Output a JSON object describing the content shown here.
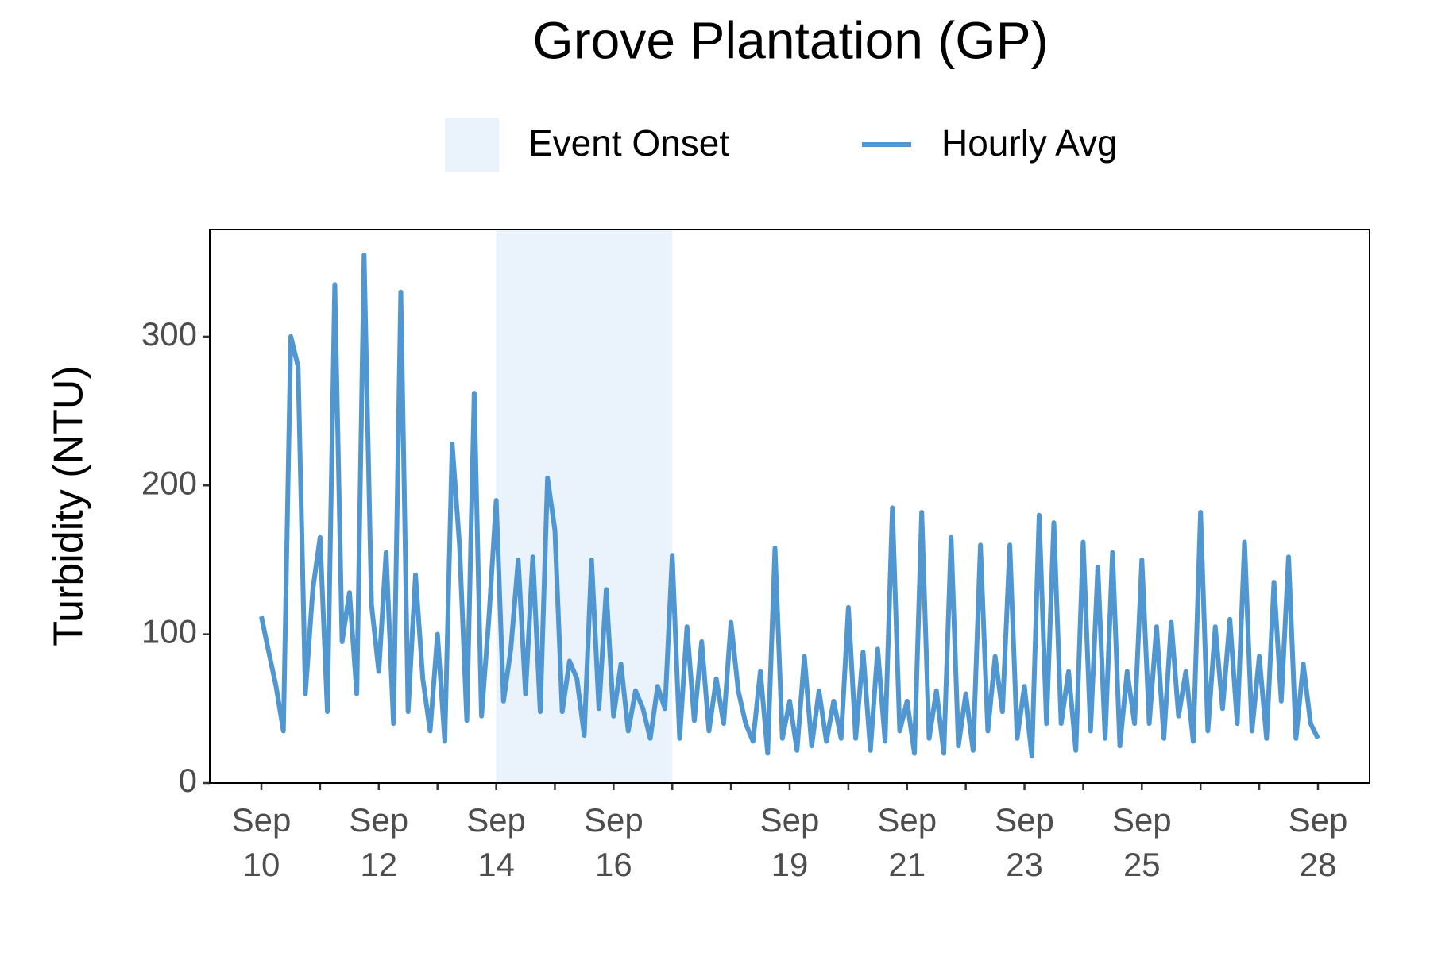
{
  "chart_data": {
    "type": "line",
    "title": "Grove Plantation (GP)",
    "y_label": "Turbidity (NTU)",
    "x": [
      10,
      10.125,
      10.25,
      10.375,
      10.5,
      10.625,
      10.75,
      10.875,
      11,
      11.125,
      11.25,
      11.375,
      11.5,
      11.625,
      11.75,
      11.875,
      12,
      12.125,
      12.25,
      12.375,
      12.5,
      12.625,
      12.75,
      12.875,
      13,
      13.125,
      13.25,
      13.375,
      13.5,
      13.625,
      13.75,
      13.875,
      14,
      14.125,
      14.25,
      14.375,
      14.5,
      14.625,
      14.75,
      14.875,
      15,
      15.125,
      15.25,
      15.375,
      15.5,
      15.625,
      15.75,
      15.875,
      16,
      16.125,
      16.25,
      16.375,
      16.5,
      16.625,
      16.75,
      16.875,
      17,
      17.125,
      17.25,
      17.375,
      17.5,
      17.625,
      17.75,
      17.875,
      18,
      18.125,
      18.25,
      18.375,
      18.5,
      18.625,
      18.75,
      18.875,
      19,
      19.125,
      19.25,
      19.375,
      19.5,
      19.625,
      19.75,
      19.875,
      20,
      20.125,
      20.25,
      20.375,
      20.5,
      20.625,
      20.75,
      20.875,
      21,
      21.125,
      21.25,
      21.375,
      21.5,
      21.625,
      21.75,
      21.875,
      22,
      22.125,
      22.25,
      22.375,
      22.5,
      22.625,
      22.75,
      22.875,
      23,
      23.125,
      23.25,
      23.375,
      23.5,
      23.625,
      23.75,
      23.875,
      24,
      24.125,
      24.25,
      24.375,
      24.5,
      24.625,
      24.75,
      24.875,
      25,
      25.125,
      25.25,
      25.375,
      25.5,
      25.625,
      25.75,
      25.875,
      26,
      26.125,
      26.25,
      26.375,
      26.5,
      26.625,
      26.75,
      26.875,
      27,
      27.125,
      27.25,
      27.375,
      27.5,
      27.625,
      27.75,
      27.875,
      28
    ],
    "series": [
      {
        "name": "Hourly Avg",
        "color": "#5096d0",
        "values": [
          112,
          88,
          65,
          35,
          300,
          280,
          60,
          130,
          165,
          48,
          335,
          95,
          128,
          60,
          355,
          120,
          75,
          155,
          40,
          330,
          48,
          140,
          70,
          35,
          100,
          28,
          228,
          160,
          42,
          262,
          45,
          110,
          190,
          55,
          90,
          150,
          60,
          152,
          48,
          205,
          170,
          48,
          82,
          70,
          32,
          150,
          50,
          130,
          45,
          80,
          35,
          62,
          50,
          30,
          65,
          50,
          153,
          30,
          105,
          42,
          95,
          35,
          70,
          40,
          108,
          62,
          40,
          28,
          75,
          20,
          158,
          30,
          55,
          22,
          85,
          25,
          62,
          28,
          55,
          30,
          118,
          30,
          88,
          22,
          90,
          28,
          185,
          35,
          55,
          20,
          182,
          30,
          62,
          20,
          165,
          25,
          60,
          22,
          160,
          35,
          85,
          48,
          160,
          30,
          65,
          18,
          180,
          40,
          175,
          40,
          75,
          22,
          162,
          35,
          145,
          30,
          155,
          25,
          75,
          40,
          150,
          40,
          105,
          30,
          108,
          45,
          75,
          28,
          182,
          35,
          105,
          50,
          110,
          40,
          162,
          35,
          85,
          30,
          135,
          55,
          152,
          30,
          80,
          40,
          30
        ]
      }
    ],
    "shaded_regions": [
      {
        "name": "Event Onset",
        "xmin": 14,
        "xmax": 17,
        "color": "#eaf3fb"
      }
    ],
    "xlim": [
      9.12,
      28.88
    ],
    "xticks": [
      {
        "value": 10,
        "label": "Sep 10"
      },
      {
        "value": 12,
        "label": "Sep 12"
      },
      {
        "value": 14,
        "label": "Sep 14"
      },
      {
        "value": 16,
        "label": "Sep 16"
      },
      {
        "value": 19,
        "label": "Sep 19"
      },
      {
        "value": 21,
        "label": "Sep 21"
      },
      {
        "value": 23,
        "label": "Sep 23"
      },
      {
        "value": 25,
        "label": "Sep 25"
      },
      {
        "value": 28,
        "label": "Sep 28"
      }
    ],
    "xminorticks": [
      11,
      13,
      15,
      17,
      18,
      20,
      22,
      24,
      26,
      27
    ],
    "ylim": [
      0,
      372
    ],
    "yticks": [
      0,
      100,
      200,
      300
    ],
    "grid": false
  }
}
